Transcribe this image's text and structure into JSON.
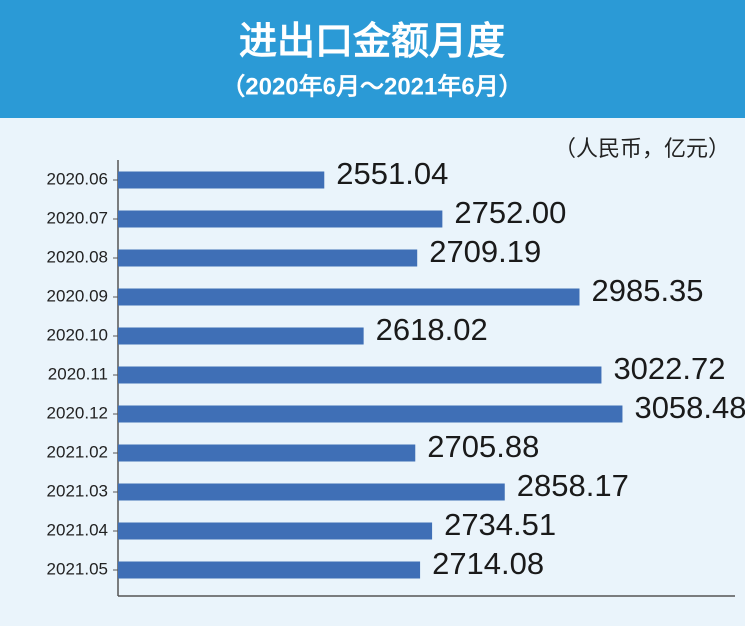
{
  "chart_data": {
    "type": "bar",
    "orientation": "horizontal",
    "title": "进出口金额月度",
    "subtitle": "（2020年6月～2021年6月）",
    "unit_label": "（人民币，亿元）",
    "categories": [
      "2020.06",
      "2020.07",
      "2020.08",
      "2020.09",
      "2020.10",
      "2020.11",
      "2020.12",
      "2021.02",
      "2021.03",
      "2021.04",
      "2021.05"
    ],
    "values": [
      2551.04,
      2752,
      2709.19,
      2985.35,
      2618.02,
      3022.72,
      3058.48,
      2705.88,
      2858.17,
      2734.51,
      2714.08
    ],
    "value_labels": [
      "2551.04",
      "2752.00",
      "2709.19",
      "2985.35",
      "2618.02",
      "3022.72",
      "3058.48",
      "2705.88",
      "2858.17",
      "2734.51",
      "2714.08"
    ],
    "color": "#3f6fb6",
    "xlim": [
      2200,
      3250
    ]
  }
}
